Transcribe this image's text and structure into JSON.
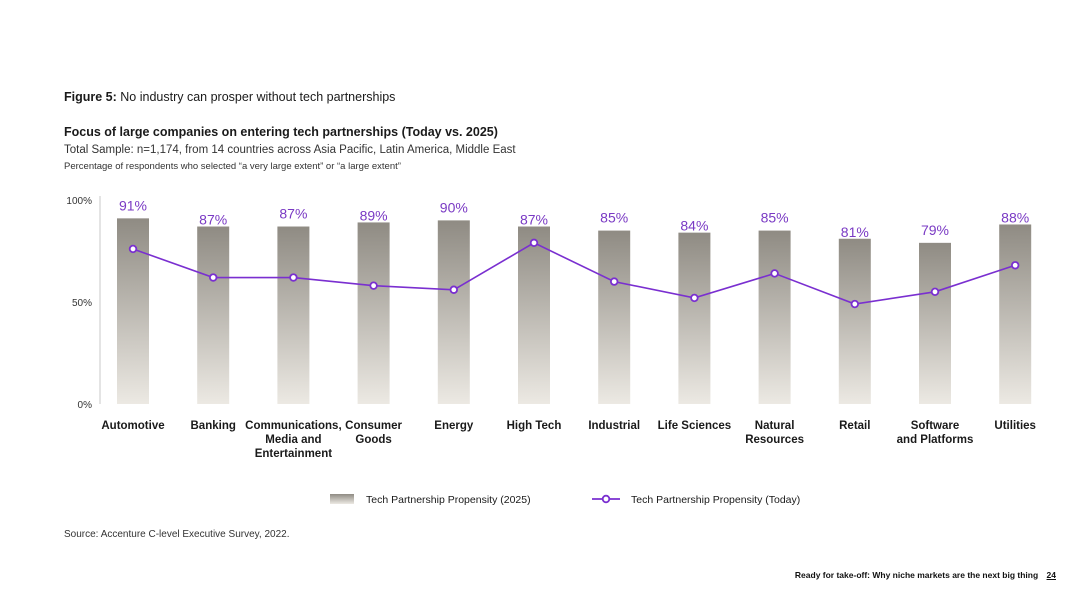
{
  "figure": {
    "label": "Figure 5:",
    "caption": "No industry can prosper without tech partnerships"
  },
  "source": "Source: Accenture C-level Executive Survey, 2022.",
  "footer": {
    "text": "Ready for take-off: Why niche markets are the next big thing",
    "page": "24"
  },
  "chart_data": {
    "type": "bar",
    "title": "Focus of large companies on entering tech partnerships (Today vs. 2025)",
    "subtitle": "Total Sample: n=1,174, from 14 countries across Asia Pacific, Latin America, Middle East",
    "subtitle2": "Percentage of respondents who selected “a very large extent” or “a large extent”",
    "categories": [
      [
        "Automotive"
      ],
      [
        "Banking"
      ],
      [
        "Communications,",
        "Media and",
        "Entertainment"
      ],
      [
        "Consumer",
        "Goods"
      ],
      [
        "Energy"
      ],
      [
        "High Tech"
      ],
      [
        "Industrial"
      ],
      [
        "Life Sciences"
      ],
      [
        "Natural",
        "Resources"
      ],
      [
        "Retail"
      ],
      [
        "Software",
        "and Platforms"
      ],
      [
        "Utilities"
      ]
    ],
    "series": [
      {
        "name": "Tech Partnership Propensity (2025)",
        "kind": "bar",
        "values": [
          91,
          87,
          87,
          89,
          90,
          87,
          85,
          84,
          85,
          81,
          79,
          88
        ],
        "labels": [
          "91%",
          "87%",
          "87%",
          "89%",
          "90%",
          "87%",
          "85%",
          "84%",
          "85%",
          "81%",
          "79%",
          "88%"
        ]
      },
      {
        "name": "Tech Partnership Propensity (Today)",
        "kind": "line",
        "values": [
          76,
          62,
          62,
          58,
          56,
          79,
          60,
          52,
          64,
          49,
          55,
          68
        ]
      }
    ],
    "yticks": [
      "100%",
      "50%",
      "0%"
    ],
    "ylim": [
      0,
      100
    ],
    "colors": {
      "bar_top": "#8f8b83",
      "bar_bottom": "#ece9e3",
      "line": "#7a2fd0",
      "label": "#7a3ac4"
    },
    "legend": "bottom-center"
  }
}
